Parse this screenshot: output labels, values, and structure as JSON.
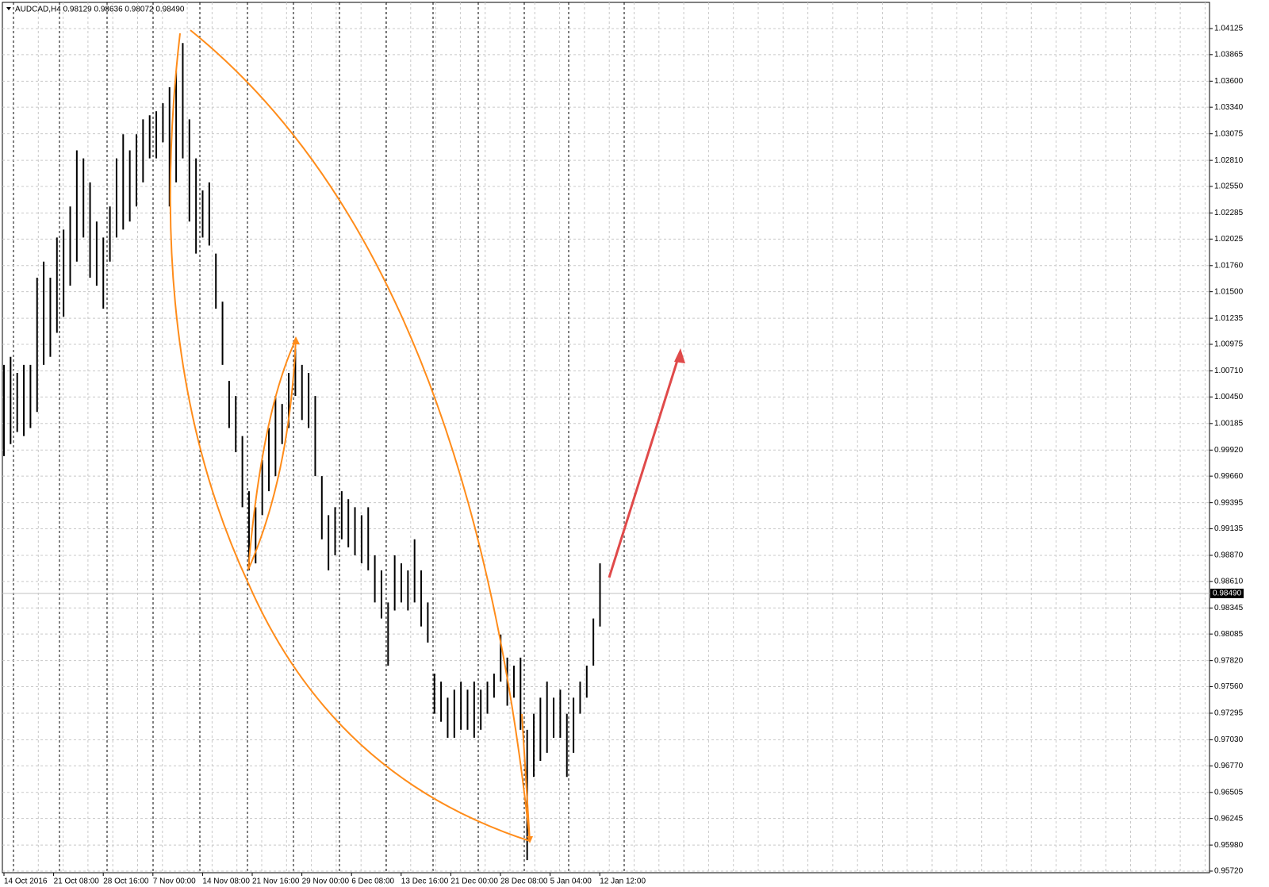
{
  "chart_data": {
    "type": "range",
    "title": "AUDCAD,H4 0.98129 0.98636 0.98072 0.98490",
    "color": "#000000",
    "grid": true,
    "x_labels": [
      "14 Oct 2016",
      "21 Oct 08:00",
      "28 Oct 16:00",
      "7 Nov 00:00",
      "14 Nov 08:00",
      "21 Nov 16:00",
      "29 Nov 00:00",
      "6 Dec 08:00",
      "13 Dec 16:00",
      "21 Dec 00:00",
      "28 Dec 08:00",
      "5 Jan 04:00",
      "12 Jan 12:00"
    ],
    "high": [
      1.0077,
      1.0085,
      1.0069,
      1.0077,
      1.0077,
      1.0164,
      1.018,
      1.0164,
      1.0204,
      1.0212,
      1.0235,
      1.0291,
      1.0283,
      1.0259,
      1.022,
      1.0204,
      1.0235,
      1.0283,
      1.0307,
      1.0291,
      1.0307,
      1.0322,
      1.0326,
      1.033,
      1.0338,
      1.0354,
      1.037,
      1.0398,
      1.0322,
      1.0283,
      1.0251,
      1.0259,
      1.0188,
      1.014,
      1.0061,
      1.0046,
      1.0006,
      0.9951,
      0.9935,
      0.9982,
      1.0014,
      1.0046,
      1.0038,
      1.0069,
      1.0093,
      1.0077,
      1.0069,
      1.0046,
      0.9966,
      0.9927,
      0.9935,
      0.9951,
      0.9943,
      0.9935,
      0.9927,
      0.9935,
      0.9887,
      0.9872,
      0.984,
      0.9887,
      0.9879,
      0.9872,
      0.9903,
      0.9872,
      0.984,
      0.9769,
      0.9761,
      0.9745,
      0.9753,
      0.9761,
      0.9753,
      0.9761,
      0.9753,
      0.9761,
      0.9769,
      0.9808,
      0.9785,
      0.9777,
      0.9785,
      0.9713,
      0.9729,
      0.9745,
      0.9761,
      0.9745,
      0.9753,
      0.9729,
      0.9745,
      0.9761,
      0.9777,
      0.9824,
      0.9879
    ],
    "low": [
      0.9986,
      0.9998,
      1.001,
      1.0006,
      1.0014,
      1.003,
      1.0077,
      1.0085,
      1.0109,
      1.0125,
      1.0156,
      1.018,
      1.0204,
      1.0164,
      1.0156,
      1.0133,
      1.018,
      1.0204,
      1.0212,
      1.022,
      1.0235,
      1.0259,
      1.0283,
      1.0283,
      1.0299,
      1.0235,
      1.0259,
      1.0283,
      1.022,
      1.0188,
      1.0204,
      1.0196,
      1.0133,
      1.0077,
      1.0014,
      0.999,
      0.9935,
      0.9872,
      0.9879,
      0.9927,
      0.9951,
      0.9966,
      0.9998,
      1.0014,
      1.0046,
      1.0022,
      1.0014,
      0.9966,
      0.9903,
      0.9872,
      0.9887,
      0.9903,
      0.9895,
      0.9887,
      0.9879,
      0.9872,
      0.984,
      0.9824,
      0.9777,
      0.9832,
      0.984,
      0.9832,
      0.984,
      0.9816,
      0.98,
      0.9729,
      0.9721,
      0.9705,
      0.9705,
      0.9713,
      0.9713,
      0.9705,
      0.9713,
      0.9729,
      0.9745,
      0.9761,
      0.9737,
      0.9745,
      0.9713,
      0.9583,
      0.9666,
      0.9682,
      0.969,
      0.9705,
      0.9705,
      0.9666,
      0.969,
      0.9729,
      0.9745,
      0.9777,
      0.9816
    ],
    "current_price": {
      "value": 0.9849,
      "label": "0.98490"
    },
    "ylim": [
      0.95704,
      1.04386
    ],
    "yticks": [
      1.04125,
      1.03865,
      {
        "value": 1.036,
        "label": "1.03600"
      },
      {
        "value": 1.0334,
        "label": "1.03340"
      },
      1.03075,
      {
        "value": 1.0281,
        "label": "1.02810"
      },
      {
        "value": 1.0255,
        "label": "1.02550"
      },
      1.02285,
      1.02025,
      {
        "value": 1.0176,
        "label": "1.01760"
      },
      {
        "value": 1.015,
        "label": "1.01500"
      },
      1.01235,
      1.00975,
      {
        "value": 1.0071,
        "label": "1.00710"
      },
      {
        "value": 1.0045,
        "label": "1.00450"
      },
      1.00185,
      {
        "value": 0.9992,
        "label": "0.99920"
      },
      {
        "value": 0.9966,
        "label": "0.99660"
      },
      0.99395,
      0.99135,
      {
        "value": 0.9887,
        "label": "0.98870"
      },
      {
        "value": 0.9861,
        "label": "0.98610"
      },
      0.98345,
      0.98085,
      {
        "value": 0.9782,
        "label": "0.97820"
      },
      {
        "value": 0.9756,
        "label": "0.97560"
      },
      0.97295,
      {
        "value": 0.9703,
        "label": "0.97030"
      },
      {
        "value": 0.9677,
        "label": "0.96770"
      },
      0.96505,
      0.96245,
      {
        "value": 0.9598,
        "label": "0.95980"
      },
      {
        "value": 0.9572,
        "label": "0.95720"
      }
    ]
  }
}
